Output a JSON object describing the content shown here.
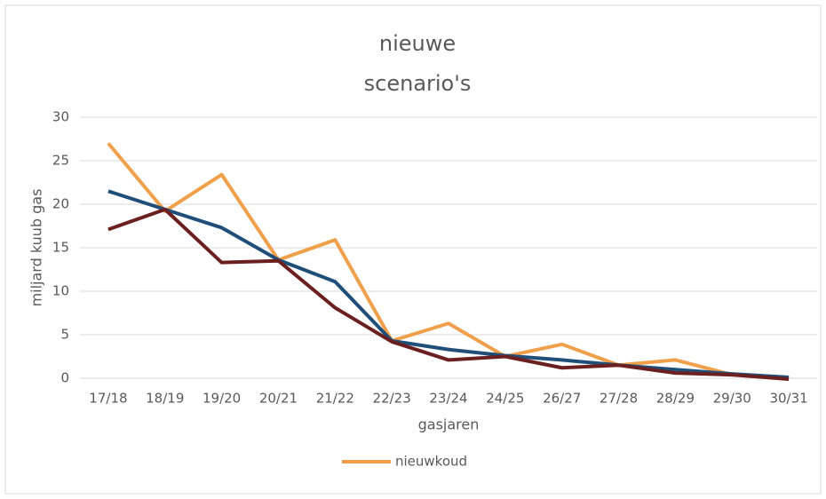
{
  "chart_data": {
    "type": "line",
    "title_lines": [
      "nieuwe",
      "scenario's"
    ],
    "y_label": "miljard kuub gas",
    "x_label": "gasjaren",
    "categories": [
      "17/18",
      "18/19",
      "19/20",
      "20/21",
      "21/22",
      "22/23",
      "23/24",
      "24/25",
      "26/27",
      "27/28",
      "28/29",
      "29/30",
      "30/31"
    ],
    "series": [
      {
        "name": "nieuwkoud",
        "color": "#f0a04b",
        "values": [
          27,
          19.2,
          23.4,
          13.6,
          15.9,
          4.3,
          6.3,
          2.5,
          3.9,
          1.5,
          2.1,
          0.4,
          0.1
        ]
      },
      {
        "color": "#1f4e79",
        "values": [
          21.5,
          19.4,
          17.3,
          13.6,
          11.1,
          4.3,
          3.3,
          2.6,
          2.1,
          1.5,
          1.0,
          0.5,
          0.1
        ]
      },
      {
        "color": "#6b1f1f",
        "values": [
          17.1,
          19.4,
          13.3,
          13.5,
          8.1,
          4.2,
          2.1,
          2.5,
          1.2,
          1.5,
          0.6,
          0.4,
          -0.1
        ]
      }
    ],
    "ylim": [
      0,
      30
    ],
    "yticks": [
      0,
      5,
      10,
      15,
      20,
      25,
      30
    ],
    "grid": true,
    "legend": "bottom"
  }
}
